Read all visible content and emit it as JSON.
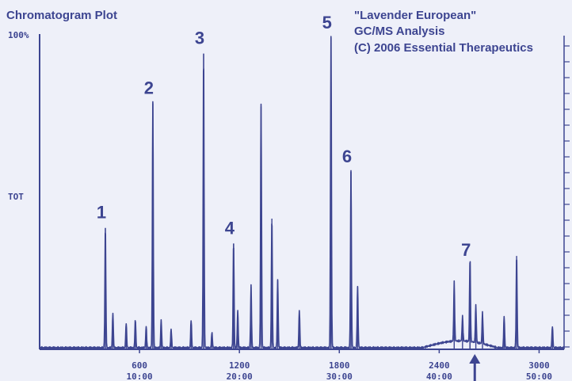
{
  "colors": {
    "background": "#eef0f9",
    "trace": "#3d4591",
    "text": "#3d4591"
  },
  "chart_data": {
    "type": "line",
    "title": "Chromatogram Plot",
    "info_lines": [
      "\"Lavender European\"",
      "GC/MS Analysis",
      "(C) 2006 Essential Therapeutics"
    ],
    "y_top_label": "100%",
    "y_mid_label": "TOT",
    "xlim": [
      0,
      3150
    ],
    "ylim": [
      0,
      100
    ],
    "x_ticks": [
      {
        "value": 600,
        "scan": "600",
        "time": "10:00"
      },
      {
        "value": 1200,
        "scan": "1200",
        "time": "20:00"
      },
      {
        "value": 1800,
        "scan": "1800",
        "time": "30:00"
      },
      {
        "value": 2400,
        "scan": "2400",
        "time": "40:00"
      },
      {
        "value": 3000,
        "scan": "3000",
        "time": "50:00"
      }
    ],
    "labeled_peaks": [
      {
        "label": "1",
        "x": 395,
        "y": 39
      },
      {
        "label": "2",
        "x": 680,
        "y": 79
      },
      {
        "label": "3",
        "x": 985,
        "y": 95
      },
      {
        "label": "4",
        "x": 1165,
        "y": 34
      },
      {
        "label": "5",
        "x": 1750,
        "y": 100
      },
      {
        "label": "6",
        "x": 1870,
        "y": 57
      },
      {
        "label": "7",
        "x": 2585,
        "y": 27
      }
    ],
    "other_peaks": [
      {
        "x": 440,
        "y": 11
      },
      {
        "x": 520,
        "y": 8
      },
      {
        "x": 575,
        "y": 9
      },
      {
        "x": 640,
        "y": 7
      },
      {
        "x": 730,
        "y": 9
      },
      {
        "x": 790,
        "y": 6
      },
      {
        "x": 910,
        "y": 9
      },
      {
        "x": 1035,
        "y": 5
      },
      {
        "x": 1190,
        "y": 12
      },
      {
        "x": 1270,
        "y": 20
      },
      {
        "x": 1330,
        "y": 78
      },
      {
        "x": 1395,
        "y": 42
      },
      {
        "x": 1430,
        "y": 22
      },
      {
        "x": 1560,
        "y": 12
      },
      {
        "x": 1910,
        "y": 20
      },
      {
        "x": 2490,
        "y": 19
      },
      {
        "x": 2540,
        "y": 8
      },
      {
        "x": 2620,
        "y": 12
      },
      {
        "x": 2660,
        "y": 10
      },
      {
        "x": 2790,
        "y": 10
      },
      {
        "x": 2865,
        "y": 30
      },
      {
        "x": 3080,
        "y": 7
      }
    ],
    "arrow_x": 2585
  }
}
